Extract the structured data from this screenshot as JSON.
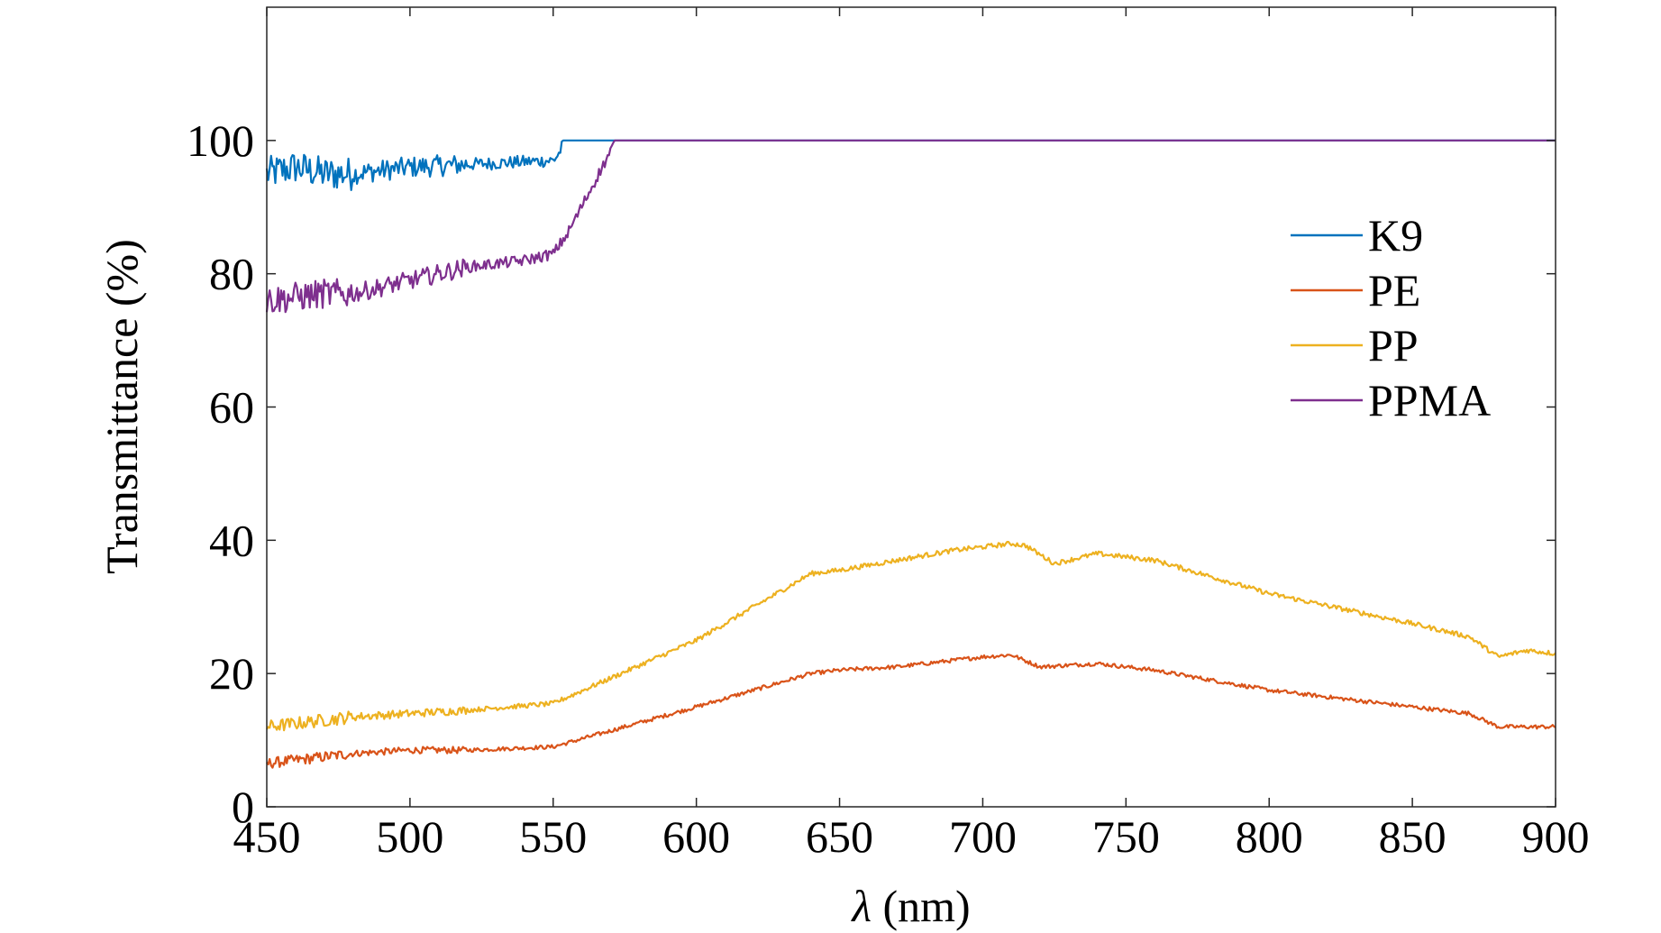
{
  "chart_data": {
    "type": "line",
    "title": "",
    "xlabel_symbol": "λ",
    "xlabel_unit": " (nm)",
    "ylabel": "Transmittance (%)",
    "xlim": [
      450,
      900
    ],
    "ylim": [
      0,
      120
    ],
    "xticks": [
      450,
      500,
      550,
      600,
      650,
      700,
      750,
      800,
      850,
      900
    ],
    "yticks": [
      0,
      20,
      40,
      60,
      80,
      100
    ],
    "legend_position": "right, upper-middle",
    "series": [
      {
        "name": "K9",
        "color": "#0072BD",
        "noise": 1.6,
        "x": [
          450,
          455,
          460,
          470,
          480,
          490,
          500,
          510,
          520,
          530,
          540,
          550,
          552,
          554,
          900
        ],
        "y": [
          95,
          95.5,
          96,
          95,
          95,
          95.5,
          96,
          96.2,
          96.4,
          96.6,
          96.8,
          97,
          98,
          100,
          100
        ]
      },
      {
        "name": "PE",
        "color": "#D95319",
        "noise": 0.5,
        "x": [
          450,
          460,
          480,
          500,
          520,
          550,
          600,
          640,
          650,
          670,
          690,
          700,
          710,
          720,
          740,
          760,
          800,
          850,
          870,
          880,
          900
        ],
        "y": [
          6.5,
          7,
          8,
          8.5,
          8.5,
          9,
          15,
          20,
          20.5,
          21,
          22,
          22.5,
          22.8,
          21,
          21.5,
          20.5,
          17.5,
          15,
          14,
          12,
          12
        ]
      },
      {
        "name": "PP",
        "color": "#EDB120",
        "noise": 0.6,
        "x": [
          450,
          460,
          480,
          500,
          520,
          550,
          600,
          640,
          650,
          670,
          690,
          700,
          710,
          715,
          725,
          740,
          760,
          800,
          850,
          870,
          880,
          890,
          900
        ],
        "y": [
          12,
          12.5,
          13.5,
          14,
          14.5,
          15.5,
          25,
          35,
          35.5,
          37,
          38.5,
          39,
          39.5,
          39.2,
          36.5,
          38,
          37,
          32,
          27.5,
          25.5,
          22.5,
          23.5,
          23
        ]
      },
      {
        "name": "PPMA",
        "color": "#7E2F8E",
        "noise": 1.4,
        "x": [
          450,
          460,
          470,
          480,
          490,
          500,
          510,
          520,
          530,
          540,
          550,
          555,
          572,
          900
        ],
        "y": [
          76,
          76.5,
          77,
          77,
          78,
          79,
          80,
          81,
          81.5,
          82,
          83,
          86,
          100,
          100
        ]
      }
    ]
  }
}
